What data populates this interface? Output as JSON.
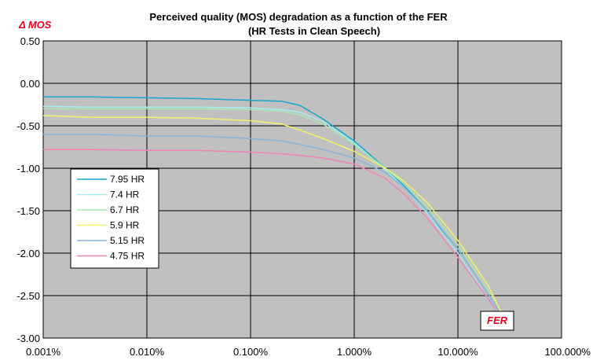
{
  "chart_data": {
    "type": "line",
    "title": "Perceived quality (MOS) degradation as a function of the FER",
    "subtitle": "(HR Tests in Clean Speech)",
    "ylabel": "Δ  MOS",
    "xlabel": "FER",
    "x_scale": "log",
    "xlim": [
      0.001,
      100
    ],
    "ylim": [
      -3.0,
      0.5
    ],
    "x_tick_labels": [
      "0.001%",
      "0.010%",
      "0.100%",
      "1.000%",
      "10.000%",
      "100.000%"
    ],
    "y_tick_labels": [
      "0.50",
      "0.00",
      "-0.50",
      "-1.00",
      "-1.50",
      "-2.00",
      "-2.50",
      "-3.00"
    ],
    "grid": true,
    "legend_position": "left",
    "plot_background": "#c0c0c0",
    "x": [
      0.001,
      0.003,
      0.01,
      0.03,
      0.1,
      0.2,
      0.3,
      0.5,
      1,
      2,
      3,
      5,
      10,
      20,
      30
    ],
    "series": [
      {
        "name": "7.95 HR",
        "color": "#17a7cf",
        "values": [
          -0.16,
          -0.16,
          -0.17,
          -0.18,
          -0.2,
          -0.21,
          -0.26,
          -0.42,
          -0.68,
          -1.0,
          -1.2,
          -1.5,
          -2.0,
          -2.55,
          -2.9
        ]
      },
      {
        "name": "7.4 HR",
        "color": "#a8ecf0",
        "values": [
          -0.27,
          -0.28,
          -0.28,
          -0.28,
          -0.29,
          -0.31,
          -0.34,
          -0.45,
          -0.7,
          -1.02,
          -1.22,
          -1.52,
          -2.0,
          -2.55,
          -2.9
        ]
      },
      {
        "name": "6.7 HR",
        "color": "#a8e8b0",
        "values": [
          -0.3,
          -0.3,
          -0.3,
          -0.3,
          -0.31,
          -0.33,
          -0.37,
          -0.48,
          -0.72,
          -1.0,
          -1.18,
          -1.45,
          -1.9,
          -2.45,
          -2.8
        ]
      },
      {
        "name": "5.9 HR",
        "color": "#f2ef6a",
        "values": [
          -0.38,
          -0.4,
          -0.4,
          -0.41,
          -0.44,
          -0.48,
          -0.55,
          -0.65,
          -0.8,
          -1.0,
          -1.15,
          -1.4,
          -1.85,
          -2.4,
          -2.85
        ]
      },
      {
        "name": "5.15 HR",
        "color": "#86b4dc",
        "values": [
          -0.6,
          -0.6,
          -0.62,
          -0.62,
          -0.65,
          -0.68,
          -0.72,
          -0.78,
          -0.88,
          -1.05,
          -1.22,
          -1.5,
          -1.95,
          -2.5,
          -2.85
        ]
      },
      {
        "name": "4.75 HR",
        "color": "#ef83b6",
        "values": [
          -0.78,
          -0.78,
          -0.79,
          -0.79,
          -0.81,
          -0.83,
          -0.85,
          -0.88,
          -0.95,
          -1.12,
          -1.3,
          -1.58,
          -2.05,
          -2.55,
          -2.9
        ]
      }
    ]
  }
}
